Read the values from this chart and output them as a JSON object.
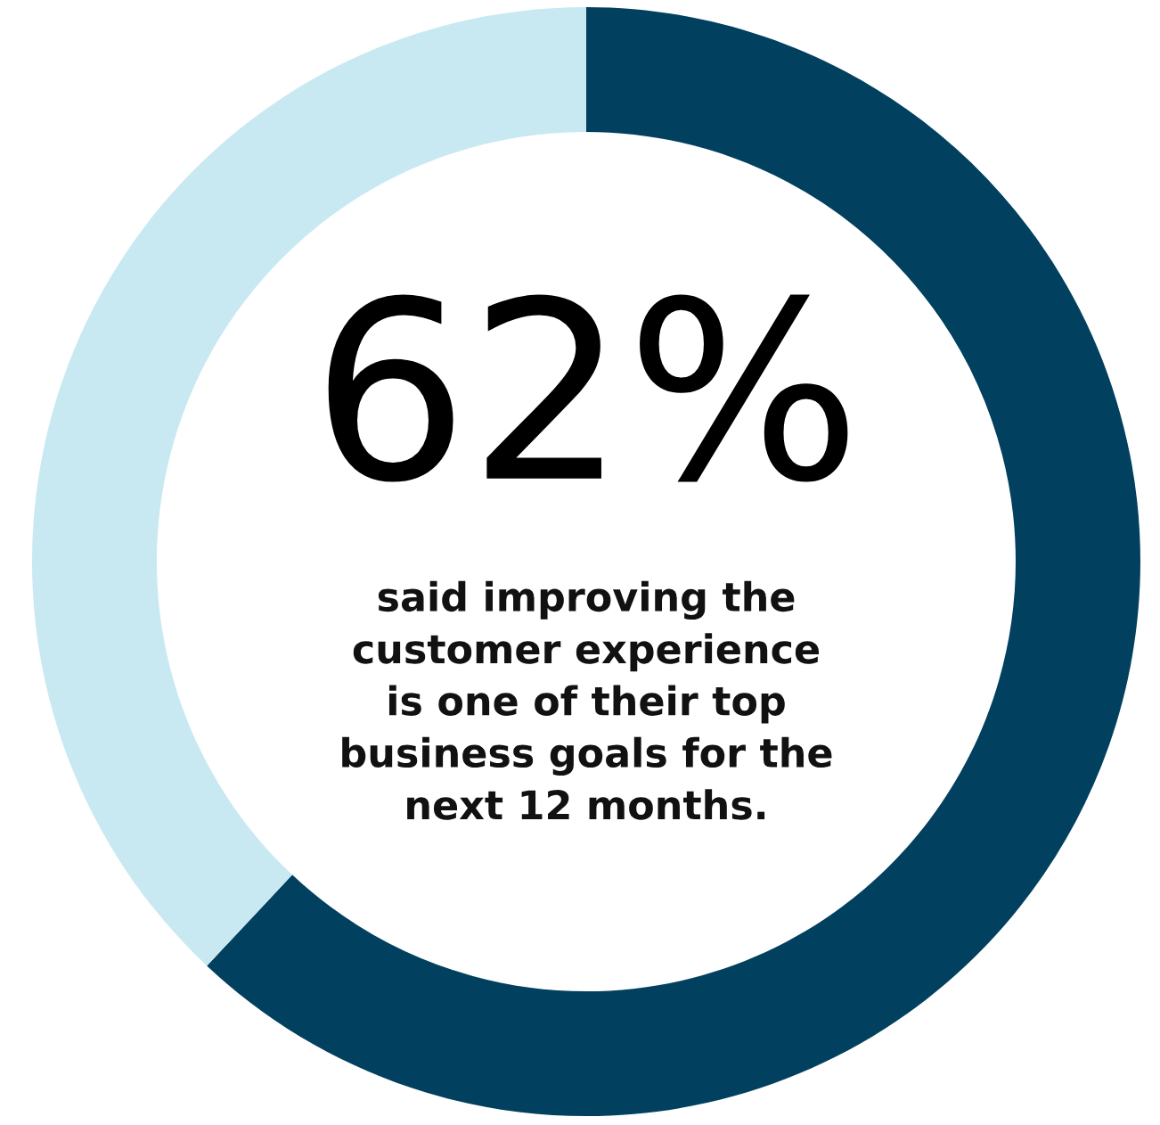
{
  "chart_data": {
    "type": "donut",
    "categories": [
      null,
      null
    ],
    "values": [
      62,
      38
    ],
    "colors": [
      "#02405f",
      "#c9e9f2"
    ],
    "value_labels": [
      "62%",
      null
    ],
    "annotations": [
      "said improving the\ncustomer experience\nis one of their top\nbusiness goals for the\nnext 12 months."
    ]
  }
}
